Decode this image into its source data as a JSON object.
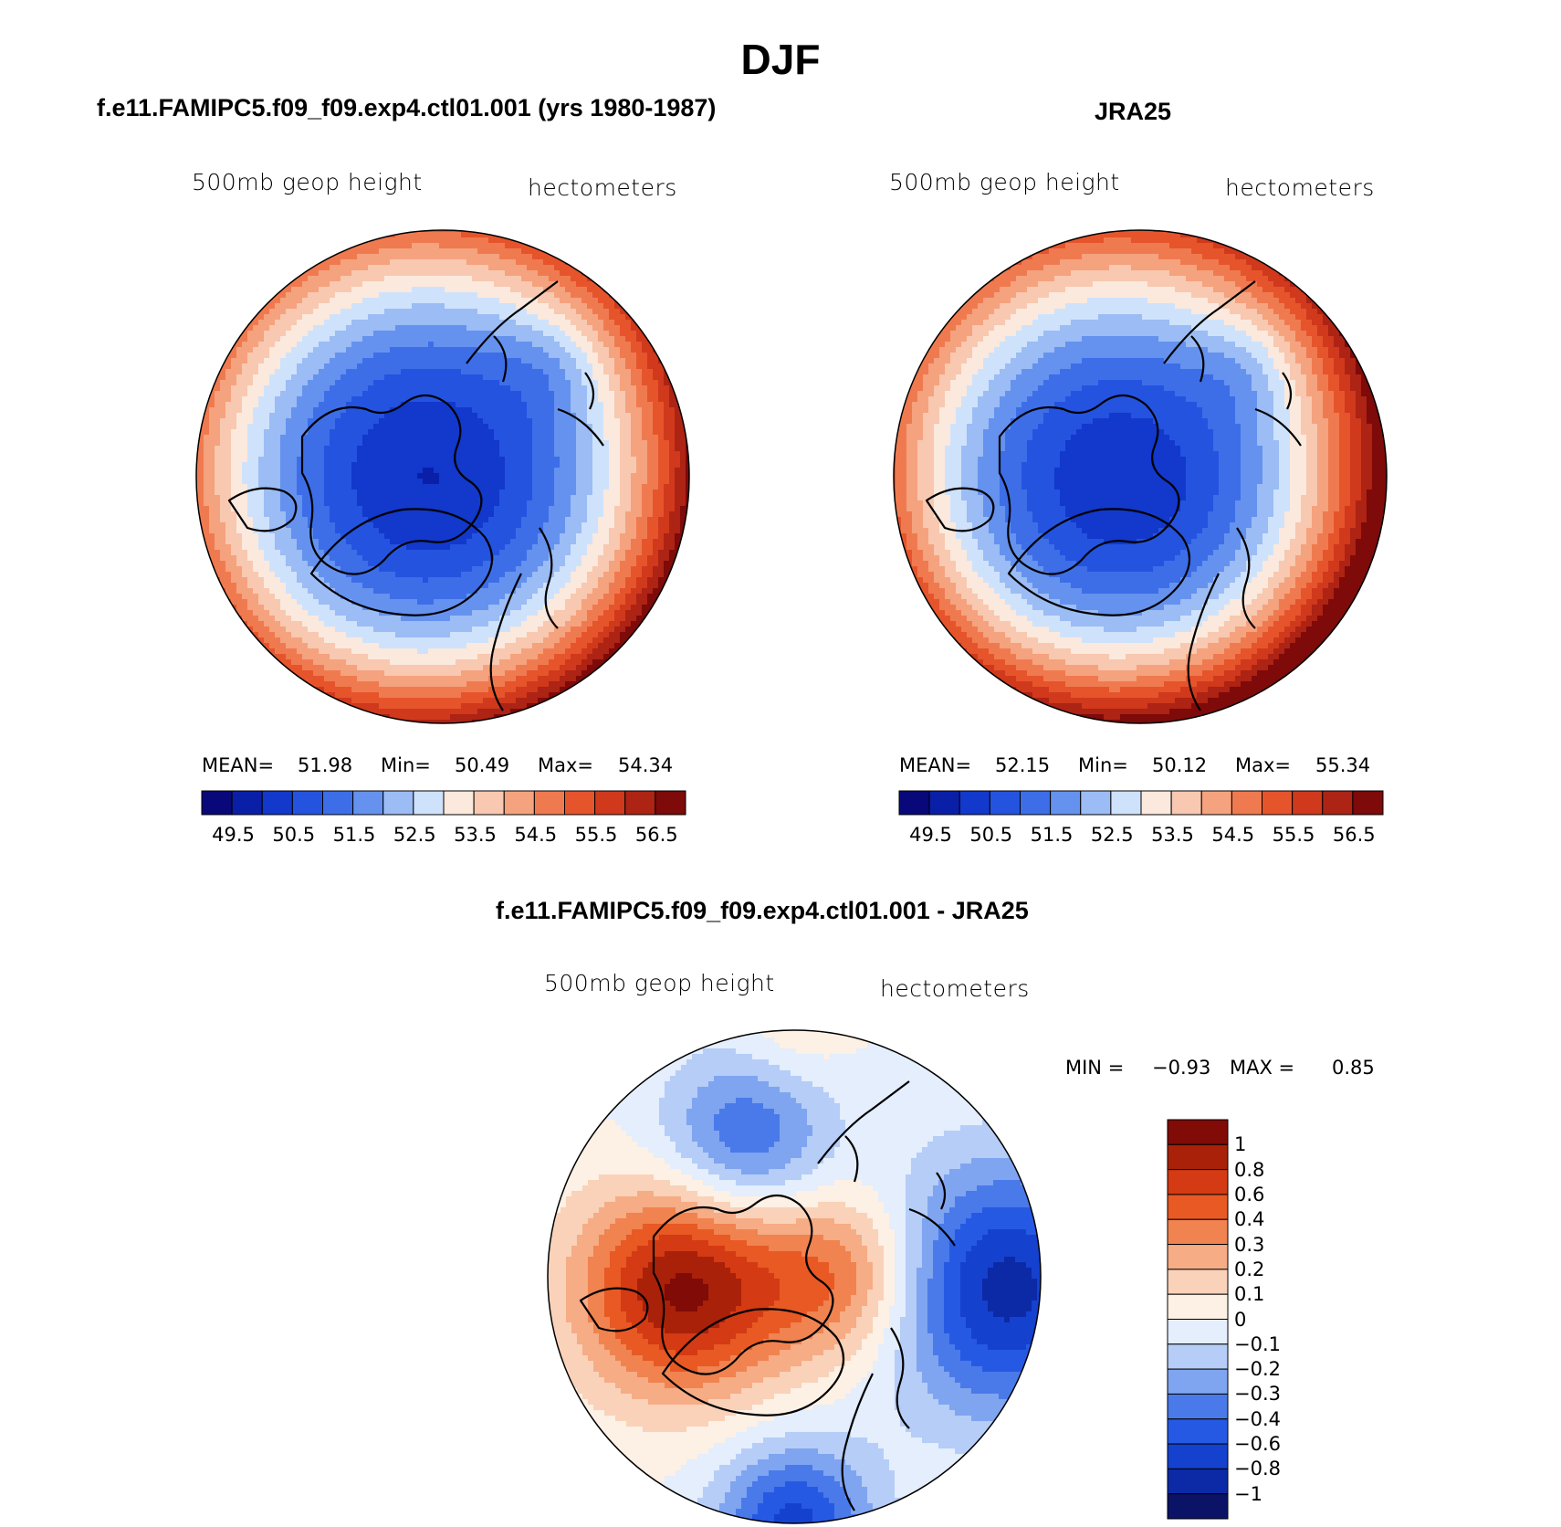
{
  "main_title": "DJF",
  "panels": [
    {
      "title": "f.e11.FAMIPC5.f09_f09.exp4.ctl01.001 (yrs 1980-1987)",
      "left_label": "500mb geop height",
      "right_label": "hectometers",
      "stats": {
        "mean_label": "MEAN=",
        "mean": "51.98",
        "min_label": "Min=",
        "min": "50.49",
        "max_label": "Max=",
        "max": "54.34"
      },
      "colorbar_ticks": [
        "49.5",
        "50.5",
        "51.5",
        "52.5",
        "53.5",
        "54.5",
        "55.5",
        "56.5"
      ]
    },
    {
      "title": "JRA25",
      "left_label": "500mb geop height",
      "right_label": "hectometers",
      "stats": {
        "mean_label": "MEAN=",
        "mean": "52.15",
        "min_label": "Min=",
        "min": "50.12",
        "max_label": "Max=",
        "max": "55.34"
      },
      "colorbar_ticks": [
        "49.5",
        "50.5",
        "51.5",
        "52.5",
        "53.5",
        "54.5",
        "55.5",
        "56.5"
      ]
    },
    {
      "title": "f.e11.FAMIPC5.f09_f09.exp4.ctl01.001 - JRA25",
      "left_label": "500mb geop height",
      "right_label": "hectometers",
      "stats": {
        "min_label": "MIN =",
        "min": "−0.93",
        "max_label": "MAX =",
        "max": "0.85"
      },
      "colorbar_ticks": [
        "1",
        "0.8",
        "0.6",
        "0.4",
        "0.3",
        "0.2",
        "0.1",
        "0",
        "−0.1",
        "−0.2",
        "−0.3",
        "−0.4",
        "−0.6",
        "−0.8",
        "−1"
      ]
    }
  ],
  "colors": {
    "palette": [
      "#08087a",
      "#0a1fa8",
      "#1238cc",
      "#2453e0",
      "#3d6ee8",
      "#6592ee",
      "#9bbcf4",
      "#cfe2fb",
      "#fbe9dd",
      "#f8c8b0",
      "#f5a27e",
      "#f07a4f",
      "#e6542c",
      "#d0391c",
      "#ad2314",
      "#7e0a0a"
    ],
    "diff_palette": [
      "#0a1366",
      "#0c2aa6",
      "#1541cf",
      "#2659e3",
      "#4a7ae9",
      "#7fa4f0",
      "#b5cdf7",
      "#e4eefc",
      "#fdf0e4",
      "#f9d2b9",
      "#f6ac85",
      "#f0834f",
      "#e85924",
      "#d43a14",
      "#a92109",
      "#800b07"
    ],
    "coast": "#000000"
  }
}
